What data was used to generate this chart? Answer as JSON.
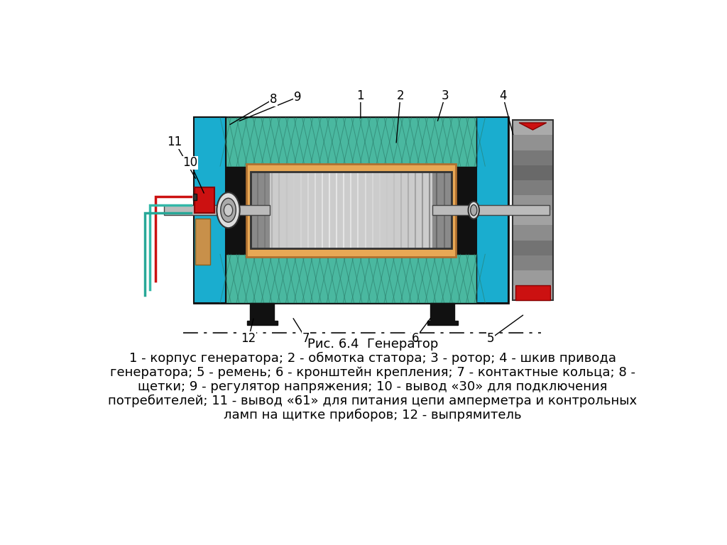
{
  "title": "Рис. 6.4  Генератор",
  "caption_line1": "1 - корпус генератора; 2 - обмотка статора; 3 - ротор; 4 - шкив привода",
  "caption_line2": "генератора; 5 - ремень; 6 - кронштейн крепления; 7 - контактные кольца; 8 -",
  "caption_line3": "щетки; 9 - регулятор напряжения; 10 - вывод «30» для подключения",
  "caption_line4": "потребителей; 11 - вывод «61» для питания цепи амперметра и контрольных",
  "caption_line5": "ламп на щитке приборов; 12 - выпрямитель",
  "bg_color": "#ffffff",
  "black": "#000000",
  "cyan_color": "#1aadcf",
  "teal_color": "#4ab8a0",
  "orange_color": "#e8a855",
  "red_color": "#cc1111",
  "font_size_caption": 13,
  "font_size_title": 13,
  "font_size_label": 12
}
